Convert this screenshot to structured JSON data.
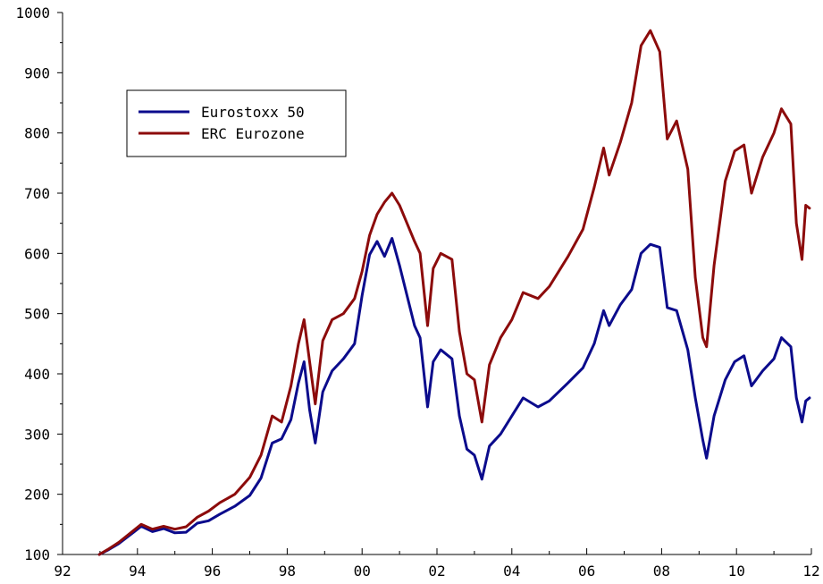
{
  "chart_data": {
    "type": "line",
    "title": "",
    "xlabel": "",
    "ylabel": "",
    "xlim": [
      1992,
      2012
    ],
    "ylim": [
      100,
      1000
    ],
    "x_ticks": [
      1992,
      1994,
      1996,
      1998,
      2000,
      2002,
      2004,
      2006,
      2008,
      2010,
      2012
    ],
    "x_tick_labels": [
      "92",
      "94",
      "96",
      "98",
      "00",
      "02",
      "04",
      "06",
      "08",
      "10",
      "12"
    ],
    "y_ticks": [
      100,
      200,
      300,
      400,
      500,
      600,
      700,
      800,
      900,
      1000
    ],
    "y_tick_labels": [
      "100",
      "200",
      "300",
      "400",
      "500",
      "600",
      "700",
      "800",
      "900",
      "1000"
    ],
    "legend_position": "upper-left",
    "grid": false,
    "series": [
      {
        "name": "Eurostoxx 50",
        "color": "#0b0b8c",
        "points": [
          [
            1992.98,
            100
          ],
          [
            1993.2,
            107
          ],
          [
            1993.5,
            118
          ],
          [
            1993.9,
            137
          ],
          [
            1994.1,
            147
          ],
          [
            1994.4,
            138
          ],
          [
            1994.7,
            143
          ],
          [
            1995.0,
            136
          ],
          [
            1995.3,
            137
          ],
          [
            1995.6,
            152
          ],
          [
            1995.9,
            156
          ],
          [
            1996.2,
            167
          ],
          [
            1996.6,
            180
          ],
          [
            1997.0,
            198
          ],
          [
            1997.3,
            227
          ],
          [
            1997.6,
            285
          ],
          [
            1997.85,
            292
          ],
          [
            1998.1,
            324
          ],
          [
            1998.3,
            385
          ],
          [
            1998.45,
            420
          ],
          [
            1998.6,
            340
          ],
          [
            1998.75,
            285
          ],
          [
            1998.95,
            370
          ],
          [
            1999.2,
            405
          ],
          [
            1999.5,
            425
          ],
          [
            1999.8,
            450
          ],
          [
            2000.0,
            530
          ],
          [
            2000.2,
            598
          ],
          [
            2000.4,
            620
          ],
          [
            2000.6,
            595
          ],
          [
            2000.8,
            625
          ],
          [
            2001.0,
            580
          ],
          [
            2001.2,
            530
          ],
          [
            2001.4,
            480
          ],
          [
            2001.55,
            460
          ],
          [
            2001.75,
            345
          ],
          [
            2001.9,
            420
          ],
          [
            2002.1,
            440
          ],
          [
            2002.4,
            425
          ],
          [
            2002.6,
            330
          ],
          [
            2002.8,
            275
          ],
          [
            2003.0,
            265
          ],
          [
            2003.2,
            225
          ],
          [
            2003.4,
            280
          ],
          [
            2003.7,
            300
          ],
          [
            2004.0,
            330
          ],
          [
            2004.3,
            360
          ],
          [
            2004.7,
            345
          ],
          [
            2005.0,
            355
          ],
          [
            2005.5,
            385
          ],
          [
            2005.9,
            410
          ],
          [
            2006.2,
            450
          ],
          [
            2006.45,
            505
          ],
          [
            2006.6,
            480
          ],
          [
            2006.9,
            515
          ],
          [
            2007.2,
            540
          ],
          [
            2007.45,
            600
          ],
          [
            2007.7,
            615
          ],
          [
            2007.95,
            610
          ],
          [
            2008.15,
            510
          ],
          [
            2008.4,
            505
          ],
          [
            2008.7,
            440
          ],
          [
            2008.9,
            360
          ],
          [
            2009.1,
            290
          ],
          [
            2009.2,
            260
          ],
          [
            2009.4,
            330
          ],
          [
            2009.7,
            390
          ],
          [
            2009.95,
            420
          ],
          [
            2010.2,
            430
          ],
          [
            2010.4,
            380
          ],
          [
            2010.7,
            405
          ],
          [
            2011.0,
            425
          ],
          [
            2011.2,
            460
          ],
          [
            2011.45,
            445
          ],
          [
            2011.6,
            360
          ],
          [
            2011.75,
            320
          ],
          [
            2011.85,
            355
          ],
          [
            2011.95,
            360
          ]
        ]
      },
      {
        "name": "ERC Eurozone",
        "color": "#8c0b0b",
        "points": [
          [
            1992.98,
            100
          ],
          [
            1993.2,
            108
          ],
          [
            1993.5,
            120
          ],
          [
            1993.9,
            140
          ],
          [
            1994.1,
            150
          ],
          [
            1994.4,
            142
          ],
          [
            1994.7,
            147
          ],
          [
            1995.0,
            142
          ],
          [
            1995.3,
            146
          ],
          [
            1995.6,
            162
          ],
          [
            1995.9,
            172
          ],
          [
            1996.2,
            186
          ],
          [
            1996.6,
            200
          ],
          [
            1997.0,
            228
          ],
          [
            1997.3,
            265
          ],
          [
            1997.6,
            330
          ],
          [
            1997.85,
            320
          ],
          [
            1998.1,
            380
          ],
          [
            1998.3,
            450
          ],
          [
            1998.45,
            490
          ],
          [
            1998.6,
            420
          ],
          [
            1998.75,
            350
          ],
          [
            1998.95,
            455
          ],
          [
            1999.2,
            490
          ],
          [
            1999.5,
            500
          ],
          [
            1999.8,
            525
          ],
          [
            2000.0,
            570
          ],
          [
            2000.2,
            630
          ],
          [
            2000.4,
            665
          ],
          [
            2000.6,
            685
          ],
          [
            2000.8,
            700
          ],
          [
            2001.0,
            680
          ],
          [
            2001.2,
            650
          ],
          [
            2001.4,
            620
          ],
          [
            2001.55,
            600
          ],
          [
            2001.75,
            480
          ],
          [
            2001.9,
            575
          ],
          [
            2002.1,
            600
          ],
          [
            2002.4,
            590
          ],
          [
            2002.6,
            470
          ],
          [
            2002.8,
            400
          ],
          [
            2003.0,
            390
          ],
          [
            2003.2,
            320
          ],
          [
            2003.4,
            415
          ],
          [
            2003.7,
            460
          ],
          [
            2004.0,
            490
          ],
          [
            2004.3,
            535
          ],
          [
            2004.7,
            525
          ],
          [
            2005.0,
            545
          ],
          [
            2005.5,
            595
          ],
          [
            2005.9,
            640
          ],
          [
            2006.2,
            710
          ],
          [
            2006.45,
            775
          ],
          [
            2006.6,
            730
          ],
          [
            2006.9,
            785
          ],
          [
            2007.2,
            850
          ],
          [
            2007.45,
            945
          ],
          [
            2007.7,
            970
          ],
          [
            2007.95,
            935
          ],
          [
            2008.15,
            790
          ],
          [
            2008.4,
            820
          ],
          [
            2008.7,
            740
          ],
          [
            2008.9,
            560
          ],
          [
            2009.1,
            460
          ],
          [
            2009.2,
            445
          ],
          [
            2009.4,
            580
          ],
          [
            2009.7,
            720
          ],
          [
            2009.95,
            770
          ],
          [
            2010.2,
            780
          ],
          [
            2010.4,
            700
          ],
          [
            2010.7,
            760
          ],
          [
            2011.0,
            800
          ],
          [
            2011.2,
            840
          ],
          [
            2011.45,
            815
          ],
          [
            2011.6,
            650
          ],
          [
            2011.75,
            590
          ],
          [
            2011.85,
            680
          ],
          [
            2011.95,
            675
          ]
        ]
      }
    ]
  }
}
